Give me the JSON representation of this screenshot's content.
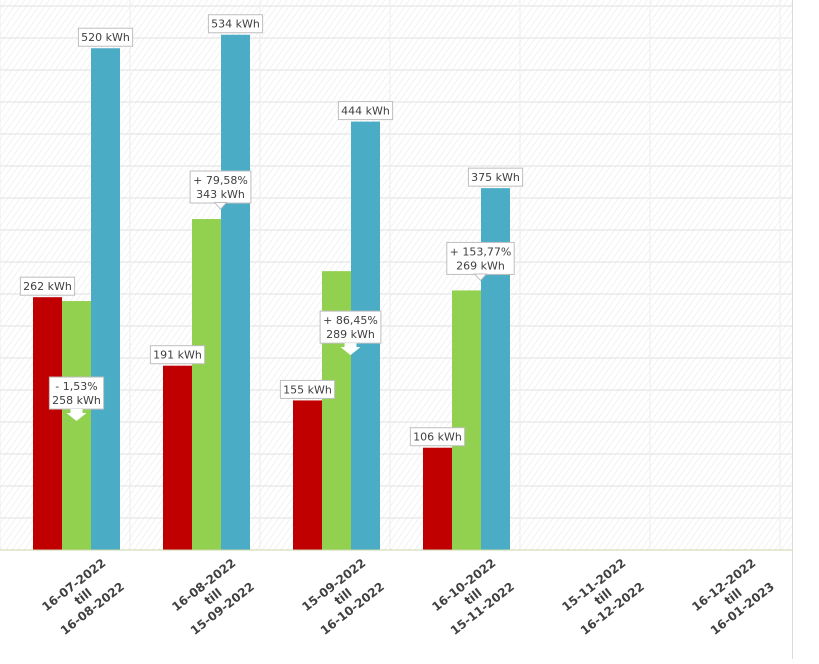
{
  "chart_data": {
    "type": "bar",
    "title": "",
    "xlabel": "",
    "ylabel": "",
    "ylim": [
      0,
      570
    ],
    "grid": true,
    "legend": "none",
    "categories": [
      [
        "16-07-2022",
        "till",
        "16-08-2022"
      ],
      [
        "16-08-2022",
        "till",
        "15-09-2022"
      ],
      [
        "15-09-2022",
        "till",
        "16-10-2022"
      ],
      [
        "16-10-2022",
        "till",
        "15-11-2022"
      ],
      [
        "15-11-2022",
        "till",
        "16-12-2022"
      ],
      [
        "16-12-2022",
        "till",
        "16-01-2023"
      ]
    ],
    "series": [
      {
        "color": "#c00000",
        "values": [
          262,
          191,
          155,
          106,
          null,
          null
        ],
        "labels": [
          [
            "262 kWh"
          ],
          [
            "191 kWh"
          ],
          [
            "155 kWh"
          ],
          [
            "106 kWh"
          ],
          null,
          null
        ]
      },
      {
        "color": "#92d050",
        "values": [
          258,
          343,
          289,
          269,
          null,
          null
        ],
        "labels": [
          [
            "- 1,53%",
            "258 kWh"
          ],
          [
            "+ 79,58%",
            "343 kWh"
          ],
          [
            "+ 86,45%",
            "289 kWh"
          ],
          [
            "+ 153,77%",
            "269 kWh"
          ],
          null,
          null
        ],
        "label_style": [
          "below",
          "callout",
          "callout-inside",
          "callout",
          null,
          null
        ]
      },
      {
        "color": "#4bacc6",
        "values": [
          520,
          534,
          444,
          375,
          null,
          null
        ],
        "labels": [
          [
            "520 kWh"
          ],
          [
            "534 kWh"
          ],
          [
            "444 kWh"
          ],
          [
            "375 kWh"
          ],
          null,
          null
        ]
      }
    ]
  }
}
